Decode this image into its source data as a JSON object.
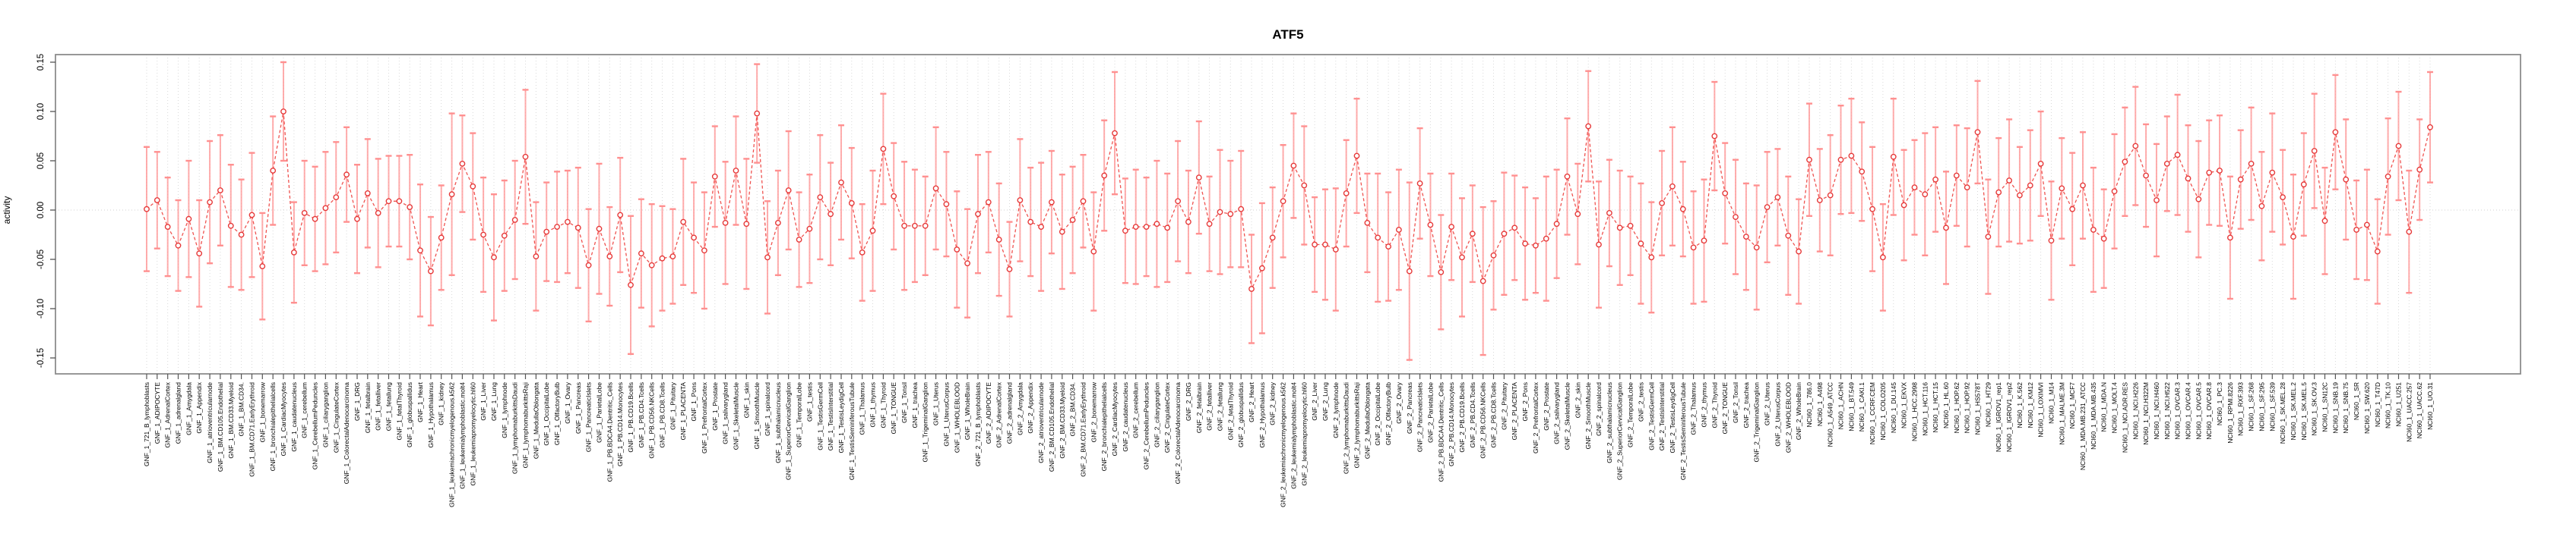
{
  "chart_data": {
    "type": "line",
    "subtype": "points-with-error-bars",
    "title": "ATF5",
    "ylabel": "activity",
    "xlabel": "",
    "ylim": [
      -0.15,
      0.15
    ],
    "yticks": [
      0.15,
      0.1,
      0.05,
      0.0,
      -0.05,
      -0.1,
      -0.15
    ],
    "grid": "vertical dotted gridline at every category; dotted horizontal zero line",
    "legend": "none",
    "colors": {
      "point": "#e63939",
      "line": "#ef5350",
      "error_bar": "#ff9090",
      "frame": "#8c8c8c",
      "gridline": "#d9d9d9",
      "text": "#000000"
    },
    "category_groups": [
      {
        "prefix": "GNF_1_",
        "items": [
          "721_B_lymphoblasts",
          "ADIPOCYTE",
          "AdrenalCortex",
          "adrenalgland",
          "Amygdala",
          "Appendix",
          "atrioventricularnode",
          "BM.CD105.Endothelial",
          "BM.CD33.Myeloid",
          "BM.CD34.",
          "BM.CD71.EarlyErythroid",
          "bonemarrow",
          "bronchialepithelialcells",
          "CardiacMyocytes",
          "caudatenucleus",
          "cerebellum",
          "CerebellumPeduncles",
          "ciliaryganglion",
          "CingulateCortex",
          "ColorectalAdenocarcinoma",
          "DRG",
          "fetalbrain",
          "fetalliver",
          "fetallung",
          "fetalThyroid",
          "globuspallidus",
          "Heart",
          "Hypothalamus",
          "kidney",
          "leukemiachronicmyelogenous.k562",
          "leukemialymphoblastic.molt4",
          "leukemiapromyelocytic.hl60",
          "Liver",
          "Lung",
          "lymphnode",
          "lymphomaburkittsDaudi",
          "lymphomaburkittsRaji",
          "MedullaOblongata",
          "OccipitalLobe",
          "OlfactoryBulb",
          "Ovary",
          "Pancreas",
          "PancreaticIslets",
          "ParietalLobe",
          "PB.BDCA4.Dentritic_Cells",
          "PB.CD14.Monocytes",
          "PB.CD19.Bcells",
          "PB.CD4.Tcells",
          "PB.CD56.NKCells",
          "PB.CD8.Tcells",
          "Pituitary",
          "PLACENTA",
          "Pons",
          "PrefrontalCortex",
          "Prostate",
          "salivarygland",
          "SkeletalMuscle",
          "skin",
          "SmoothMuscle",
          "spinalcord",
          "subthalamicnucleus",
          "SuperiorCervicalGanglion",
          "TemporalLobe",
          "testis",
          "TestisGermCell",
          "TestisInterstitial",
          "TestisLeydigCell",
          "TestisSeminiferousTubule",
          "Thalamus",
          "thymus",
          "Thyroid",
          "TONGUE",
          "Tonsil",
          "trachea",
          "TrigeminalGanglion",
          "Uterus",
          "UterusCorpus",
          "WHOLEBLOOD",
          "WholeBrain"
        ]
      },
      {
        "prefix": "GNF_2_",
        "items": [
          "721_B_lymphoblasts",
          "ADIPOCYTE",
          "AdrenalCortex",
          "adrenalgland",
          "Amygdala",
          "Appendix",
          "atrioventricularnode",
          "BM.CD105.Endothelial",
          "BM.CD33.Myeloid",
          "BM.CD34.",
          "BM.CD71.EarlyErythroid",
          "bonemarrow",
          "bronchialepithelialcells",
          "CardiacMyocytes",
          "caudatenucleus",
          "cerebellum",
          "CerebellumPeduncles",
          "ciliaryganglion",
          "CingulateCortex",
          "ColorectalAdenocarcinoma",
          "DRG",
          "fetalbrain",
          "fetalliver",
          "fetallung",
          "fetalThyroid",
          "globuspallidus",
          "Heart",
          "Hypothalamus",
          "kidney",
          "leukemiachronicmyelogenous.k562",
          "leukemialymphoblastic.molt4",
          "leukemiapromyelocytic.hl60",
          "Liver",
          "Lung",
          "lymphnode",
          "lymphomaburkittsDaudi",
          "lymphomaburkittsRaji",
          "MedullaOblongata",
          "OccipitalLobe",
          "OlfactoryBulb",
          "Ovary",
          "Pancreas",
          "PancreaticIslets",
          "ParietalLobe",
          "PB.BDCA4.Dentritic_Cells",
          "PB.CD14.Monocytes",
          "PB.CD19.Bcells",
          "PB.CD4.Tcells",
          "PB.CD56.NKCells",
          "PB.CD8.Tcells",
          "Pituitary",
          "PLACENTA",
          "Pons",
          "PrefrontalCortex",
          "Prostate",
          "salivarygland",
          "SkeletalMuscle",
          "skin",
          "SmoothMuscle",
          "spinalcord",
          "subthalamicnucleus",
          "SuperiorCervicalGanglion",
          "TemporalLobe",
          "testis",
          "TestisGermCell",
          "TestisInterstitial",
          "TestisLeydigCell",
          "TestisSeminiferousTubule",
          "Thalamus",
          "thymus",
          "Thyroid",
          "TONGUE",
          "Tonsil",
          "trachea",
          "TrigeminalGanglion",
          "Uterus",
          "UterusCorpus",
          "WHOLEBLOOD",
          "WholeBrain"
        ]
      },
      {
        "prefix": "NCI60_1_",
        "items": [
          "786.0",
          "A498",
          "A549_ATCC",
          "ACHN",
          "BT.549",
          "CAKI.1",
          "CCRF.CEM",
          "COLO205",
          "DU.145",
          "EKVX",
          "HCC.2998",
          "HCT.116",
          "HCT.15",
          "HL.60",
          "HOP.62",
          "HOP.92",
          "HS578T",
          "HT29",
          "IGROV1_rep1",
          "IGROV1_rep2",
          "K.562",
          "KM12",
          "LOXIMVI",
          "M14",
          "MALME.3M",
          "MCF7",
          "MDA.MB.231_ATCC",
          "MDA.MB.435",
          "MDA.N",
          "MOLT.4",
          "NCI.ADR.RES",
          "NCI.H226",
          "NCI.H322M",
          "NCI.H460",
          "NCI.H522",
          "OVCAR.3",
          "OVCAR.4",
          "OVCAR.5",
          "OVCAR.8",
          "PC.3",
          "RPMI.8226",
          "RXF.393",
          "SF.268",
          "SF.295",
          "SF.539",
          "SK.MEL.28",
          "SK.MEL.2",
          "SK.MEL.5",
          "SK.OV.3",
          "SN12C",
          "SNB.19",
          "SNB.75",
          "SR",
          "SW.620",
          "T47D",
          "TK.10",
          "U251",
          "UACC.257",
          "UACC.62",
          "UO.31"
        ]
      }
    ],
    "values": [
      0.001,
      0.01,
      -0.017,
      -0.036,
      -0.009,
      -0.044,
      0.008,
      0.02,
      -0.016,
      -0.025,
      -0.005,
      -0.057,
      0.04,
      0.1,
      -0.043,
      -0.003,
      -0.009,
      0.002,
      0.013,
      0.036,
      -0.009,
      0.017,
      -0.003,
      0.009,
      0.009,
      0.003,
      -0.041,
      -0.062,
      -0.028,
      0.016,
      0.047,
      0.024,
      -0.025,
      -0.048,
      -0.026,
      -0.01,
      0.054,
      -0.047,
      -0.022,
      -0.017,
      -0.012,
      -0.018,
      -0.056,
      -0.019,
      -0.047,
      -0.005,
      -0.076,
      -0.044,
      -0.056,
      -0.049,
      -0.047,
      -0.012,
      -0.028,
      -0.041,
      0.034,
      -0.013,
      0.04,
      -0.014,
      0.098,
      -0.048,
      -0.013,
      0.02,
      -0.03,
      -0.019,
      0.013,
      -0.004,
      0.028,
      0.007,
      -0.043,
      -0.021,
      0.062,
      0.014,
      -0.016,
      -0.016,
      -0.016,
      0.022,
      0.006,
      -0.04,
      -0.054,
      -0.004,
      0.008,
      -0.03,
      -0.06,
      0.01,
      -0.012,
      -0.017,
      0.008,
      -0.022,
      -0.01,
      0.009,
      -0.042,
      0.035,
      0.078,
      -0.021,
      -0.017,
      -0.017,
      -0.014,
      -0.018,
      0.009,
      -0.012,
      0.033,
      -0.014,
      -0.002,
      -0.004,
      0.001,
      -0.08,
      -0.059,
      -0.028,
      0.009,
      0.045,
      0.025,
      -0.035,
      -0.035,
      -0.04,
      0.017,
      0.055,
      -0.013,
      -0.028,
      -0.037,
      -0.02,
      -0.062,
      0.027,
      -0.015,
      -0.063,
      -0.017,
      -0.048,
      -0.024,
      -0.072,
      -0.046,
      -0.024,
      -0.018,
      -0.034,
      -0.036,
      -0.029,
      -0.014,
      0.034,
      -0.004,
      0.085,
      -0.035,
      -0.003,
      -0.018,
      -0.016,
      -0.034,
      -0.048,
      0.007,
      0.024,
      0.001,
      -0.038,
      -0.031,
      0.075,
      0.017,
      -0.007,
      -0.027,
      -0.038,
      0.003,
      0.013,
      -0.026,
      -0.042,
      0.051,
      0.01,
      0.015,
      0.051,
      0.055,
      0.039,
      0.001,
      -0.048,
      0.054,
      0.005,
      0.023,
      0.016,
      0.031,
      -0.018,
      0.035,
      0.023,
      0.079,
      -0.027,
      0.018,
      0.03,
      0.015,
      0.025,
      0.047,
      -0.031,
      0.022,
      0.001,
      0.025,
      -0.02,
      -0.029,
      0.019,
      0.049,
      0.065,
      0.035,
      0.01,
      0.047,
      0.056,
      0.032,
      0.011,
      0.038,
      0.04,
      -0.028,
      0.031,
      0.047,
      0.004,
      0.038,
      0.013,
      -0.027,
      0.026,
      0.06,
      -0.011,
      0.079,
      0.031,
      -0.02,
      -0.015,
      -0.042,
      0.034,
      0.065,
      -0.022,
      0.041,
      0.084
    ],
    "err": [
      0.063,
      0.049,
      0.05,
      0.046,
      0.059,
      0.054,
      0.062,
      0.056,
      0.062,
      0.056,
      0.063,
      0.054,
      0.055,
      0.05,
      0.051,
      0.053,
      0.053,
      0.057,
      0.056,
      0.048,
      0.055,
      0.055,
      0.055,
      0.046,
      0.046,
      0.053,
      0.067,
      0.055,
      0.053,
      0.082,
      0.049,
      0.054,
      0.058,
      0.064,
      0.056,
      0.06,
      0.068,
      0.055,
      0.05,
      0.056,
      0.052,
      0.061,
      0.057,
      0.066,
      0.05,
      0.058,
      0.07,
      0.055,
      0.062,
      0.053,
      0.048,
      0.064,
      0.056,
      0.059,
      0.051,
      0.062,
      0.055,
      0.066,
      0.05,
      0.057,
      0.053,
      0.06,
      0.048,
      0.055,
      0.063,
      0.052,
      0.058,
      0.056,
      0.049,
      0.061,
      0.056,
      0.054,
      0.065,
      0.057,
      0.05,
      0.062,
      0.053,
      0.059,
      0.055,
      0.06,
      0.051,
      0.057,
      0.048,
      0.062,
      0.055,
      0.065,
      0.052,
      0.058,
      0.054,
      0.047,
      0.06,
      0.056,
      0.062,
      0.053,
      0.058,
      0.05,
      0.064,
      0.055,
      0.061,
      0.052,
      0.057,
      0.048,
      0.063,
      0.054,
      0.059,
      0.055,
      0.066,
      0.051,
      0.057,
      0.053,
      0.06,
      0.048,
      0.056,
      0.062,
      0.054,
      0.058,
      0.05,
      0.065,
      0.055,
      0.061,
      0.09,
      0.056,
      0.052,
      0.058,
      0.054,
      0.06,
      0.049,
      0.075,
      0.055,
      0.062,
      0.053,
      0.057,
      0.048,
      0.063,
      0.055,
      0.059,
      0.051,
      0.056,
      0.064,
      0.054,
      0.058,
      0.05,
      0.061,
      0.056,
      0.053,
      0.06,
      0.048,
      0.057,
      0.062,
      0.055,
      0.051,
      0.058,
      0.054,
      0.063,
      0.056,
      0.049,
      0.06,
      0.053,
      0.057,
      0.052,
      0.061,
      0.055,
      0.058,
      0.05,
      0.063,
      0.054,
      0.059,
      0.056,
      0.048,
      0.062,
      0.053,
      0.057,
      0.051,
      0.06,
      0.052,
      0.058,
      0.055,
      0.062,
      0.049,
      0.056,
      0.053,
      0.06,
      0.051,
      0.057,
      0.054,
      0.063,
      0.05,
      0.058,
      0.055,
      0.06,
      0.052,
      0.057,
      0.048,
      0.061,
      0.054,
      0.059,
      0.053,
      0.056,
      0.062,
      0.05,
      0.057,
      0.055,
      0.06,
      0.048,
      0.063,
      0.052,
      0.058,
      0.054,
      0.058,
      0.061,
      0.05,
      0.056,
      0.053,
      0.059,
      0.055,
      0.062,
      0.051,
      0.056
    ]
  }
}
